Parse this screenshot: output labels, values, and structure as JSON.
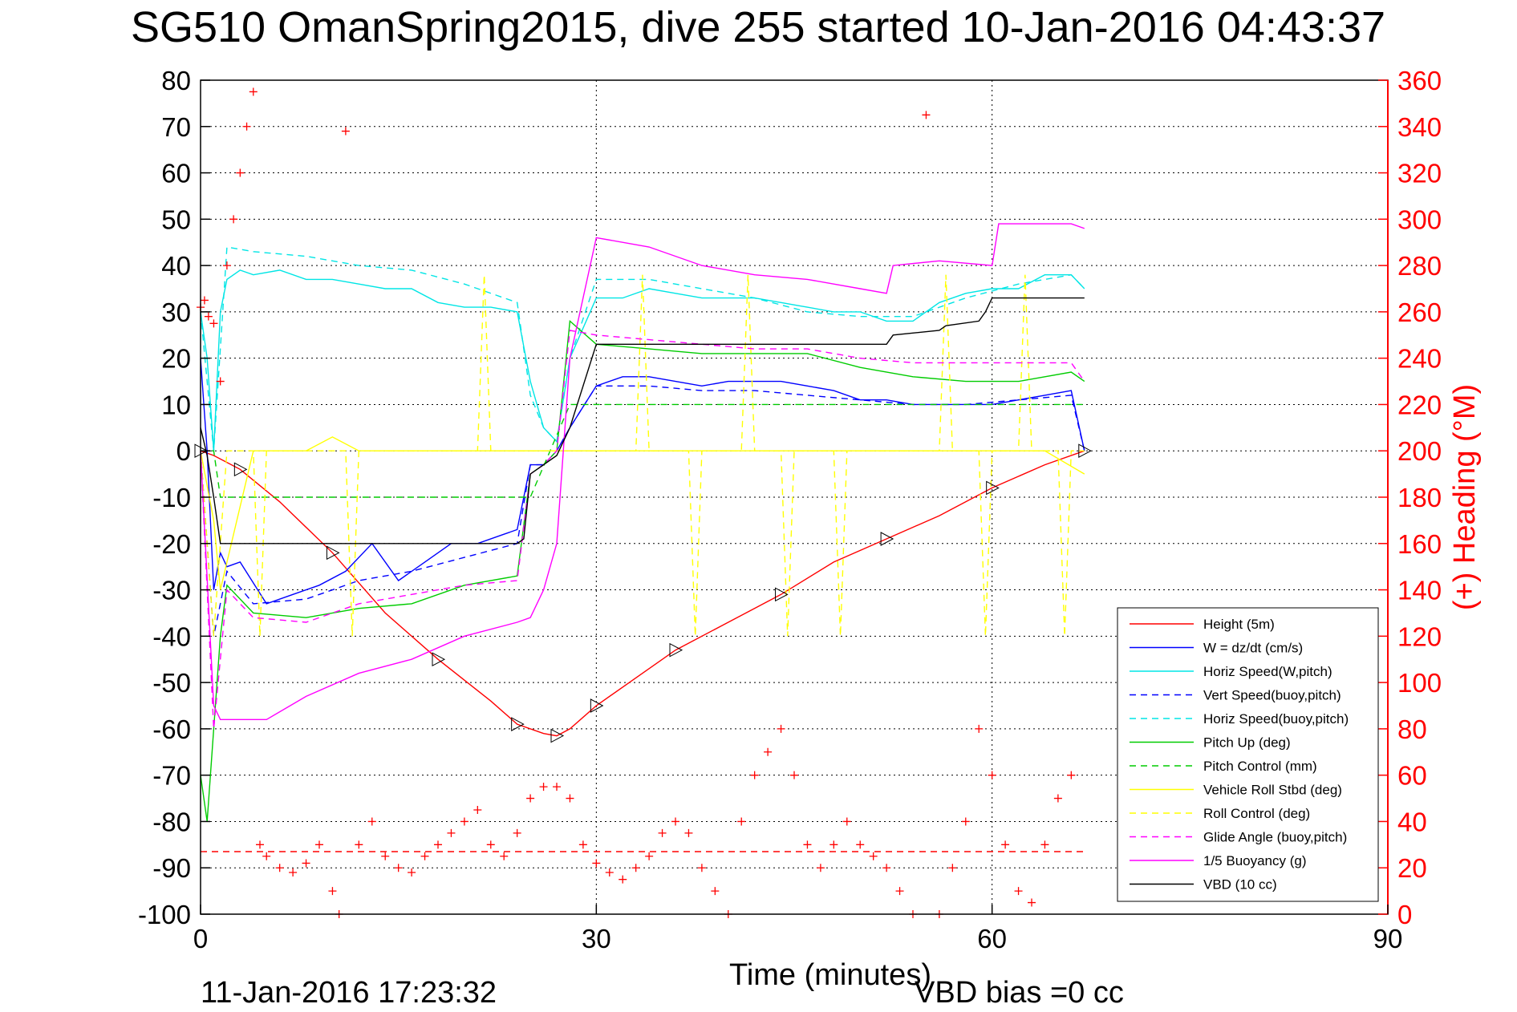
{
  "chart_data": {
    "type": "line",
    "title": "SG510 OmanSpring2015, dive 255 started 10-Jan-2016 04:43:37",
    "xlabel": "Time (minutes)",
    "ylabel_right": "(+) Heading (°M)",
    "footer_left": "11-Jan-2016 17:23:32",
    "footer_right": "VBD bias =0 cc",
    "xlim": [
      0,
      90
    ],
    "ylim": [
      -100,
      80
    ],
    "ylim_right": [
      0,
      360
    ],
    "x_ticks": [
      "0",
      "30",
      "60",
      "90"
    ],
    "y_ticks": [
      "80",
      "70",
      "60",
      "50",
      "40",
      "30",
      "20",
      "10",
      "0",
      "-10",
      "-20",
      "-30",
      "-40",
      "-50",
      "-60",
      "-70",
      "-80",
      "-90",
      "-100"
    ],
    "y_ticks_right": [
      "360",
      "340",
      "320",
      "300",
      "280",
      "260",
      "240",
      "220",
      "200",
      "180",
      "160",
      "140",
      "120",
      "100",
      "80",
      "60",
      "40",
      "20",
      "0"
    ],
    "grid": true,
    "legend_position": "bottom-right",
    "series": [
      {
        "name": "Height (5m)",
        "color": "#ff0000",
        "dash": "solid",
        "x": [
          0,
          1,
          3,
          6,
          10,
          14,
          18,
          22,
          24,
          26,
          27,
          28,
          30,
          33,
          36,
          40,
          44,
          48,
          52,
          56,
          60,
          64,
          67
        ],
        "y": [
          0,
          -1,
          -4,
          -11,
          -22,
          -35,
          -45,
          -54,
          -59,
          -61,
          -61.5,
          -60,
          -55,
          -49,
          -43,
          -37,
          -31,
          -24,
          -19,
          -14,
          -8,
          -3,
          0
        ]
      },
      {
        "name": "W = dz/dt (cm/s)",
        "color": "#0000ff",
        "dash": "solid",
        "x": [
          0,
          0.5,
          1,
          1.5,
          2,
          3,
          5,
          7,
          9,
          11,
          13,
          15,
          17,
          19,
          21,
          23,
          24,
          25,
          26,
          27,
          28,
          30,
          32,
          34,
          36,
          38,
          40,
          42,
          44,
          46,
          48,
          50,
          52,
          54,
          56,
          58,
          60,
          62,
          64,
          66,
          67
        ],
        "y": [
          20,
          0,
          -30,
          -22,
          -25,
          -24,
          -33,
          -31,
          -29,
          -26,
          -20,
          -28,
          -24,
          -20,
          -20,
          -18,
          -17,
          -3,
          -3,
          0,
          5,
          14,
          16,
          16,
          15,
          14,
          15,
          15,
          15,
          14,
          13,
          11,
          11,
          10,
          10,
          10,
          10,
          11,
          12,
          13,
          0
        ]
      },
      {
        "name": "Horiz Speed(W,pitch)",
        "color": "#00e5e5",
        "dash": "solid",
        "x": [
          0,
          0.5,
          1,
          1.5,
          2,
          3,
          4,
          6,
          8,
          10,
          12,
          14,
          16,
          18,
          20,
          22,
          24,
          25,
          26,
          27,
          28,
          30,
          32,
          34,
          36,
          38,
          40,
          42,
          44,
          46,
          48,
          50,
          52,
          54,
          56,
          58,
          60,
          62,
          64,
          66,
          67
        ],
        "y": [
          30,
          20,
          0,
          30,
          37,
          39,
          38,
          39,
          37,
          37,
          36,
          35,
          35,
          32,
          31,
          31,
          30,
          15,
          5,
          2,
          20,
          33,
          33,
          35,
          34,
          33,
          33,
          33,
          32,
          31,
          30,
          30,
          28,
          28,
          32,
          34,
          35,
          35,
          38,
          38,
          35
        ]
      },
      {
        "name": "Vert Speed(buoy,pitch)",
        "color": "#0000ff",
        "dash": "dashed",
        "x": [
          0,
          1,
          2,
          4,
          8,
          12,
          16,
          20,
          24,
          25,
          26,
          27,
          28,
          30,
          34,
          38,
          42,
          46,
          50,
          54,
          58,
          62,
          66,
          67
        ],
        "y": [
          0,
          -40,
          -26,
          -33,
          -32,
          -28,
          -26,
          -23,
          -20,
          -3,
          -3,
          0,
          5,
          14,
          14,
          13,
          13,
          12,
          11,
          10,
          10,
          11,
          12,
          0
        ]
      },
      {
        "name": "Horiz Speed(buoy,pitch)",
        "color": "#00e5e5",
        "dash": "dashed",
        "x": [
          0,
          1,
          2,
          4,
          8,
          12,
          16,
          20,
          24,
          25,
          26,
          27,
          28,
          30,
          34,
          38,
          42,
          46,
          50,
          54,
          58,
          62,
          66,
          67
        ],
        "y": [
          30,
          0,
          44,
          43,
          42,
          40,
          39,
          36,
          32,
          12,
          5,
          2,
          20,
          37,
          37,
          35,
          33,
          30,
          29,
          29,
          33,
          36,
          38,
          35
        ]
      },
      {
        "name": "Pitch Up (deg)",
        "color": "#00cc00",
        "dash": "solid",
        "x": [
          0,
          0.5,
          1,
          1.5,
          2,
          4,
          8,
          12,
          16,
          20,
          24,
          25,
          26,
          27,
          28,
          30,
          34,
          38,
          42,
          46,
          50,
          54,
          58,
          62,
          66,
          67
        ],
        "y": [
          -70,
          -80,
          -60,
          -40,
          -29,
          -35,
          -36,
          -34,
          -33,
          -29,
          -27,
          -5,
          -3,
          0,
          28,
          23,
          22,
          21,
          21,
          21,
          18,
          16,
          15,
          15,
          17,
          15
        ]
      },
      {
        "name": "Pitch Control (mm)",
        "color": "#00cc00",
        "dash": "dashed",
        "x": [
          0,
          1,
          1.5,
          24,
          25,
          28,
          30,
          67
        ],
        "y": [
          0,
          0,
          -10,
          -10,
          -10,
          10,
          10,
          10
        ]
      },
      {
        "name": "Vehicle Roll Stbd (deg)",
        "color": "#ffff00",
        "dash": "solid",
        "x": [
          0,
          1,
          1.5,
          4,
          8,
          10,
          12,
          16,
          20,
          24,
          26,
          30,
          34,
          38,
          40,
          44,
          48,
          52,
          56,
          60,
          64,
          67
        ],
        "y": [
          0,
          -15,
          -30,
          0,
          0,
          3,
          0,
          0,
          0,
          0,
          0,
          0,
          0,
          0,
          0,
          0,
          0,
          0,
          0,
          0,
          0,
          -5
        ]
      },
      {
        "name": "Roll Control (deg)",
        "color": "#ffff00",
        "dash": "dashed",
        "x": [
          0,
          1,
          2,
          4,
          4.5,
          5,
          11,
          11.5,
          12,
          21,
          21.5,
          22,
          25,
          33,
          33.5,
          34,
          37,
          37.5,
          38,
          41,
          41.5,
          42,
          44,
          44.5,
          45,
          48,
          48.5,
          49,
          56,
          56.5,
          57,
          59,
          59.5,
          60,
          62,
          62.5,
          63,
          65,
          65.5,
          66,
          67
        ],
        "y": [
          0,
          -40,
          0,
          0,
          -40,
          0,
          0,
          -40,
          0,
          0,
          38,
          0,
          0,
          0,
          38,
          0,
          0,
          -40,
          0,
          0,
          38,
          0,
          0,
          -40,
          0,
          0,
          -40,
          0,
          0,
          38,
          0,
          0,
          -40,
          0,
          0,
          38,
          0,
          0,
          -40,
          0,
          0
        ]
      },
      {
        "name": "Glide Angle (buoy,pitch)",
        "color": "#ff00ff",
        "dash": "dashed",
        "x": [
          0,
          1,
          2,
          4,
          8,
          12,
          16,
          20,
          24,
          25,
          26,
          27,
          28,
          30,
          34,
          38,
          42,
          46,
          50,
          54,
          58,
          62,
          66,
          67
        ],
        "y": [
          0,
          -60,
          -30,
          -36,
          -37,
          -33,
          -31,
          -29,
          -28,
          -5,
          -3,
          0,
          26,
          25,
          24,
          23,
          22,
          22,
          20,
          19,
          19,
          19,
          19,
          15
        ]
      },
      {
        "name": "1/5 Buoyancy (g)",
        "color": "#ff00ff",
        "dash": "solid",
        "x": [
          0,
          1,
          1.5,
          5,
          8,
          12,
          16,
          20,
          24,
          25,
          26,
          27,
          28,
          30,
          34,
          38,
          42,
          46,
          48,
          50,
          52,
          52.5,
          56,
          60,
          60.5,
          66,
          67
        ],
        "y": [
          0,
          -55,
          -58,
          -58,
          -53,
          -48,
          -45,
          -40,
          -37,
          -36,
          -30,
          -20,
          20,
          46,
          44,
          40,
          38,
          37,
          36,
          35,
          34,
          40,
          41,
          40,
          49,
          49,
          48
        ]
      },
      {
        "name": "VBD (10 cc)",
        "color": "#000000",
        "dash": "solid",
        "x": [
          0,
          0.5,
          1,
          1.5,
          24,
          24.5,
          25,
          26,
          27,
          28,
          30,
          38,
          52,
          52.5,
          56,
          56.5,
          59,
          59.5,
          60,
          67
        ],
        "y": [
          5,
          -1,
          -10,
          -20,
          -20,
          -19,
          -5,
          -3,
          -1,
          5,
          23,
          23,
          23,
          25,
          26,
          27,
          28,
          30,
          33,
          33
        ]
      },
      {
        "name": "Heading",
        "color": "#ff0000",
        "dash": "markers",
        "axis": "right",
        "x": [
          0,
          0.3,
          0.6,
          1,
          1.5,
          2,
          2.5,
          3,
          3.5,
          4,
          4.5,
          5,
          6,
          7,
          8,
          9,
          10,
          10.5,
          11,
          12,
          13,
          14,
          15,
          16,
          17,
          18,
          19,
          20,
          21,
          22,
          23,
          24,
          25,
          26,
          27,
          28,
          29,
          30,
          31,
          32,
          33,
          34,
          35,
          36,
          37,
          38,
          39,
          40,
          41,
          42,
          43,
          44,
          45,
          46,
          47,
          48,
          49,
          50,
          51,
          52,
          53,
          54,
          55,
          56,
          57,
          58,
          59,
          60,
          61,
          62,
          63,
          64,
          65,
          66
        ],
        "y": [
          262,
          265,
          258,
          255,
          230,
          280,
          300,
          320,
          340,
          355,
          30,
          25,
          20,
          18,
          22,
          30,
          10,
          0,
          338,
          30,
          40,
          25,
          20,
          18,
          25,
          30,
          35,
          40,
          45,
          30,
          25,
          35,
          50,
          55,
          55,
          50,
          30,
          22,
          18,
          15,
          20,
          25,
          35,
          40,
          35,
          20,
          10,
          0,
          40,
          60,
          70,
          80,
          60,
          30,
          20,
          30,
          40,
          30,
          25,
          20,
          10,
          0,
          345,
          0,
          20,
          40,
          80,
          60,
          30,
          10,
          5,
          30,
          50,
          60
        ]
      },
      {
        "name": "Heading ref",
        "color": "#ff0000",
        "dash": "dashed",
        "axis": "right",
        "x": [
          0,
          67
        ],
        "y": [
          27,
          27
        ]
      }
    ]
  }
}
